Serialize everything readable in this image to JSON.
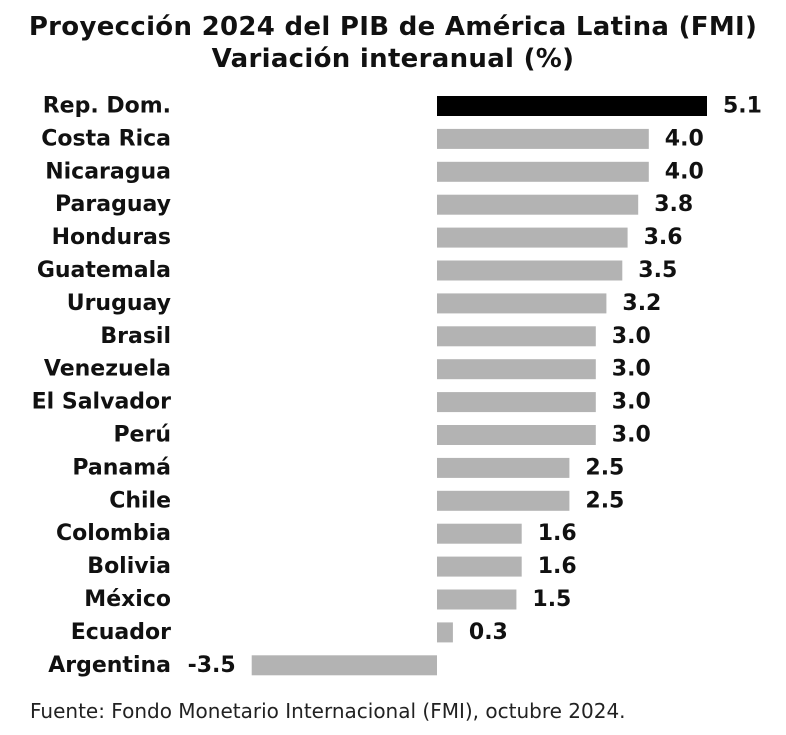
{
  "title_line1": "Proyección 2024 del PIB de América Latina (FMI)",
  "title_line2": "Variación interanual (%)",
  "source": "Fuente: Fondo Monetario Internacional (FMI), octubre 2024.",
  "colors": {
    "highlight": "#000000",
    "bar": "#b3b3b3",
    "text": "#111111"
  },
  "chart_data": {
    "type": "bar",
    "orientation": "horizontal",
    "title": "Proyección 2024 del PIB de América Latina (FMI) — Variación interanual (%)",
    "xlabel": "",
    "ylabel": "",
    "categories": [
      "Rep. Dom.",
      "Costa Rica",
      "Nicaragua",
      "Paraguay",
      "Honduras",
      "Guatemala",
      "Uruguay",
      "Brasil",
      "Venezuela",
      "El Salvador",
      "Perú",
      "Panamá",
      "Chile",
      "Colombia",
      "Bolivia",
      "México",
      "Ecuador",
      "Argentina"
    ],
    "values": [
      5.1,
      4.0,
      4.0,
      3.8,
      3.6,
      3.5,
      3.2,
      3.0,
      3.0,
      3.0,
      3.0,
      2.5,
      2.5,
      1.6,
      1.6,
      1.5,
      0.3,
      -3.5
    ],
    "value_labels": [
      "5.1",
      "4.0",
      "4.0",
      "3.8",
      "3.6",
      "3.5",
      "3.2",
      "3.0",
      "3.0",
      "3.0",
      "3.0",
      "2.5",
      "2.5",
      "1.6",
      "1.6",
      "1.5",
      "0.3",
      "-3.5"
    ],
    "highlight_category": "Rep. Dom.",
    "xlim": [
      -3.5,
      5.1
    ],
    "grid": false,
    "legend": "none"
  }
}
